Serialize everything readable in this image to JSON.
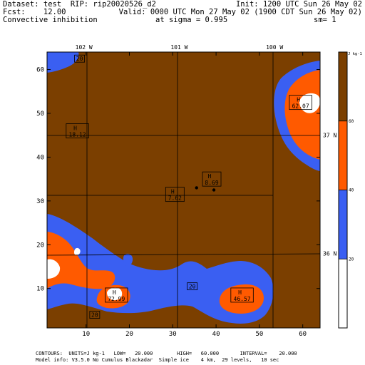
{
  "header": {
    "dataset": "Dataset: test  RIP: rip20020526_d2",
    "init": "Init: 1200 UTC Sun 26 May 02",
    "fcst": "Fcst:    12.00",
    "valid": "Valid: 0000 UTC Mon 27 May 02 (1900 CDT Sun 26 May 02)",
    "field": "Convective inhibition",
    "sigma": "at sigma = 0.995",
    "sm": "sm= 1"
  },
  "footer": {
    "line1": "CONTOURS:  UNITS=J kg-1   LOW=   20.000        HIGH=   60.000       INTERVAL=    20.000",
    "line2": "Model info: V3.5.0 No Cumulus Blackadar  Simple ice    4 km,  29 levels,   10 sec"
  },
  "colors": {
    "brown": "#7B3F00",
    "blue": "#3A5FF2",
    "orange": "#FF5A00",
    "white": "#FFFFFF"
  },
  "chart_data": {
    "type": "filled-contour-map",
    "x_ticks": [
      10,
      20,
      30,
      40,
      50,
      60
    ],
    "y_ticks": [
      10,
      20,
      30,
      40,
      50,
      60
    ],
    "xlim": [
      1,
      64
    ],
    "ylim": [
      1,
      64
    ],
    "longitude_labels": [
      {
        "text": "102 W",
        "x": 9.5
      },
      {
        "text": "101 W",
        "x": 31.5
      },
      {
        "text": "100 W",
        "x": 53.5
      }
    ],
    "latitude_labels": [
      {
        "text": "37 N",
        "y": 45
      },
      {
        "text": "36 N",
        "y": 18
      }
    ],
    "colorbar": {
      "units": "J kg-1",
      "ticks": [
        {
          "label": "20",
          "value": 20
        },
        {
          "label": "40",
          "value": 40
        },
        {
          "label": "60",
          "value": 60
        }
      ],
      "bands": [
        {
          "from": 0,
          "to": 20,
          "color": "#FFFFFF"
        },
        {
          "from": 20,
          "to": 40,
          "color": "#3A5FF2"
        },
        {
          "from": 40,
          "to": 60,
          "color": "#FF5A00"
        },
        {
          "from": 60,
          "to": 80,
          "color": "#7B3F00"
        }
      ]
    },
    "maxima": [
      {
        "label": "H",
        "value": "18.12",
        "x": 8,
        "y": 46
      },
      {
        "label": "H",
        "value": "8.69",
        "x": 39,
        "y": 35
      },
      {
        "label": "H",
        "value": "7.62",
        "x": 30.5,
        "y": 31.5
      },
      {
        "label": "H",
        "value": "62.07",
        "x": 59.5,
        "y": 52.5
      },
      {
        "label": "H",
        "value": "72.99",
        "x": 17,
        "y": 8.5
      },
      {
        "label": "H",
        "value": "46.57",
        "x": 46,
        "y": 8.5
      }
    ],
    "contour_labels": [
      {
        "value": "20",
        "x": 8.5,
        "y": 62.5
      },
      {
        "value": "20",
        "x": 34.5,
        "y": 10.5
      },
      {
        "value": "20",
        "x": 12,
        "y": 4
      }
    ],
    "station_dots": [
      {
        "x": 35.5,
        "y": 33
      },
      {
        "x": 39.5,
        "y": 32.5
      }
    ]
  }
}
